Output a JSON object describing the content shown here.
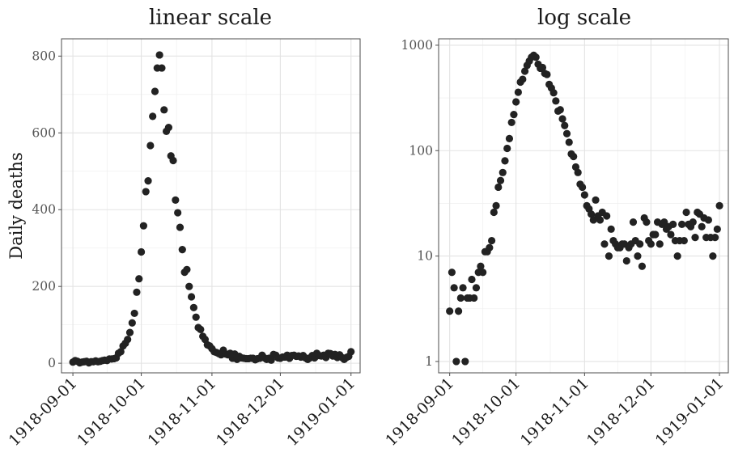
{
  "chart_data": [
    {
      "type": "scatter",
      "title": "linear scale",
      "xlabel": "",
      "ylabel": "Daily deaths",
      "y_scale": "linear",
      "ylim": [
        -25,
        845
      ],
      "y_ticks": [
        0,
        200,
        400,
        600,
        800
      ],
      "y_tick_labels": [
        "0",
        "200",
        "400",
        "600",
        "800"
      ],
      "xlim": [
        "1918-08-27",
        "1919-01-05"
      ],
      "x_ticks": [
        "1918-09-01",
        "1918-10-01",
        "1918-11-01",
        "1918-12-01",
        "1919-01-01"
      ],
      "grid": true,
      "marker_color": "#222222",
      "points": [
        [
          "1918-09-01",
          3
        ],
        [
          "1918-09-02",
          7
        ],
        [
          "1918-09-03",
          5
        ],
        [
          "1918-09-04",
          1
        ],
        [
          "1918-09-05",
          3
        ],
        [
          "1918-09-06",
          4
        ],
        [
          "1918-09-07",
          5
        ],
        [
          "1918-09-08",
          1
        ],
        [
          "1918-09-09",
          4
        ],
        [
          "1918-09-10",
          4
        ],
        [
          "1918-09-11",
          6
        ],
        [
          "1918-09-12",
          4
        ],
        [
          "1918-09-13",
          5
        ],
        [
          "1918-09-14",
          7
        ],
        [
          "1918-09-15",
          8
        ],
        [
          "1918-09-16",
          7
        ],
        [
          "1918-09-17",
          11
        ],
        [
          "1918-09-18",
          11
        ],
        [
          "1918-09-19",
          12
        ],
        [
          "1918-09-20",
          14
        ],
        [
          "1918-09-21",
          26
        ],
        [
          "1918-09-22",
          30
        ],
        [
          "1918-09-23",
          45
        ],
        [
          "1918-09-24",
          52
        ],
        [
          "1918-09-25",
          62
        ],
        [
          "1918-09-26",
          80
        ],
        [
          "1918-09-27",
          105
        ],
        [
          "1918-09-28",
          130
        ],
        [
          "1918-09-29",
          185
        ],
        [
          "1918-09-30",
          220
        ],
        [
          "1918-10-01",
          290
        ],
        [
          "1918-10-02",
          358
        ],
        [
          "1918-10-03",
          447
        ],
        [
          "1918-10-04",
          475
        ],
        [
          "1918-10-05",
          567
        ],
        [
          "1918-10-06",
          643
        ],
        [
          "1918-10-07",
          708
        ],
        [
          "1918-10-08",
          769
        ],
        [
          "1918-10-09",
          803
        ],
        [
          "1918-10-10",
          769
        ],
        [
          "1918-10-11",
          660
        ],
        [
          "1918-10-12",
          604
        ],
        [
          "1918-10-13",
          614
        ],
        [
          "1918-10-14",
          540
        ],
        [
          "1918-10-15",
          528
        ],
        [
          "1918-10-16",
          425
        ],
        [
          "1918-10-17",
          392
        ],
        [
          "1918-10-18",
          354
        ],
        [
          "1918-10-19",
          296
        ],
        [
          "1918-10-20",
          237
        ],
        [
          "1918-10-21",
          244
        ],
        [
          "1918-10-22",
          200
        ],
        [
          "1918-10-23",
          173
        ],
        [
          "1918-10-24",
          145
        ],
        [
          "1918-10-25",
          120
        ],
        [
          "1918-10-26",
          93
        ],
        [
          "1918-10-27",
          88
        ],
        [
          "1918-10-28",
          70
        ],
        [
          "1918-10-29",
          62
        ],
        [
          "1918-10-30",
          48
        ],
        [
          "1918-10-31",
          45
        ],
        [
          "1918-11-01",
          38
        ],
        [
          "1918-11-02",
          30
        ],
        [
          "1918-11-03",
          28
        ],
        [
          "1918-11-04",
          25
        ],
        [
          "1918-11-05",
          22
        ],
        [
          "1918-11-06",
          34
        ],
        [
          "1918-11-07",
          24
        ],
        [
          "1918-11-08",
          22
        ],
        [
          "1918-11-09",
          26
        ],
        [
          "1918-11-10",
          13
        ],
        [
          "1918-11-11",
          24
        ],
        [
          "1918-11-12",
          10
        ],
        [
          "1918-11-13",
          18
        ],
        [
          "1918-11-14",
          14
        ],
        [
          "1918-11-15",
          13
        ],
        [
          "1918-11-16",
          12
        ],
        [
          "1918-11-17",
          12
        ],
        [
          "1918-11-18",
          13
        ],
        [
          "1918-11-19",
          13
        ],
        [
          "1918-11-20",
          9
        ],
        [
          "1918-11-21",
          12
        ],
        [
          "1918-11-22",
          13
        ],
        [
          "1918-11-23",
          21
        ],
        [
          "1918-11-24",
          14
        ],
        [
          "1918-11-25",
          10
        ],
        [
          "1918-11-26",
          13
        ],
        [
          "1918-11-27",
          8
        ],
        [
          "1918-11-28",
          23
        ],
        [
          "1918-11-29",
          21
        ],
        [
          "1918-11-30",
          14
        ],
        [
          "1918-12-01",
          13
        ],
        [
          "1918-12-02",
          16
        ],
        [
          "1918-12-03",
          16
        ],
        [
          "1918-12-04",
          21
        ],
        [
          "1918-12-05",
          13
        ],
        [
          "1918-12-06",
          20
        ],
        [
          "1918-12-07",
          21
        ],
        [
          "1918-12-08",
          18
        ],
        [
          "1918-12-09",
          19
        ],
        [
          "1918-12-10",
          16
        ],
        [
          "1918-12-11",
          20
        ],
        [
          "1918-12-12",
          14
        ],
        [
          "1918-12-13",
          10
        ],
        [
          "1918-12-14",
          14
        ],
        [
          "1918-12-15",
          20
        ],
        [
          "1918-12-16",
          14
        ],
        [
          "1918-12-17",
          26
        ],
        [
          "1918-12-18",
          20
        ],
        [
          "1918-12-19",
          19
        ],
        [
          "1918-12-20",
          21
        ],
        [
          "1918-12-21",
          15
        ],
        [
          "1918-12-22",
          26
        ],
        [
          "1918-12-23",
          25
        ],
        [
          "1918-12-24",
          19
        ],
        [
          "1918-12-25",
          23
        ],
        [
          "1918-12-26",
          15
        ],
        [
          "1918-12-27",
          22
        ],
        [
          "1918-12-28",
          15
        ],
        [
          "1918-12-29",
          10
        ],
        [
          "1918-12-30",
          15
        ],
        [
          "1918-12-31",
          18
        ],
        [
          "1919-01-01",
          30
        ]
      ]
    },
    {
      "type": "scatter",
      "title": "log scale",
      "xlabel": "",
      "ylabel": "",
      "y_scale": "log10",
      "ylim": [
        0.78,
        1150
      ],
      "y_ticks": [
        1,
        10,
        100,
        1000
      ],
      "y_tick_labels": [
        "1",
        "10",
        "100",
        "1000"
      ],
      "xlim": [
        "1918-08-27",
        "1919-01-05"
      ],
      "x_ticks": [
        "1918-09-01",
        "1918-10-01",
        "1918-11-01",
        "1918-12-01",
        "1919-01-01"
      ],
      "grid": true,
      "marker_color": "#222222",
      "points_same_as_panel": 0
    }
  ]
}
